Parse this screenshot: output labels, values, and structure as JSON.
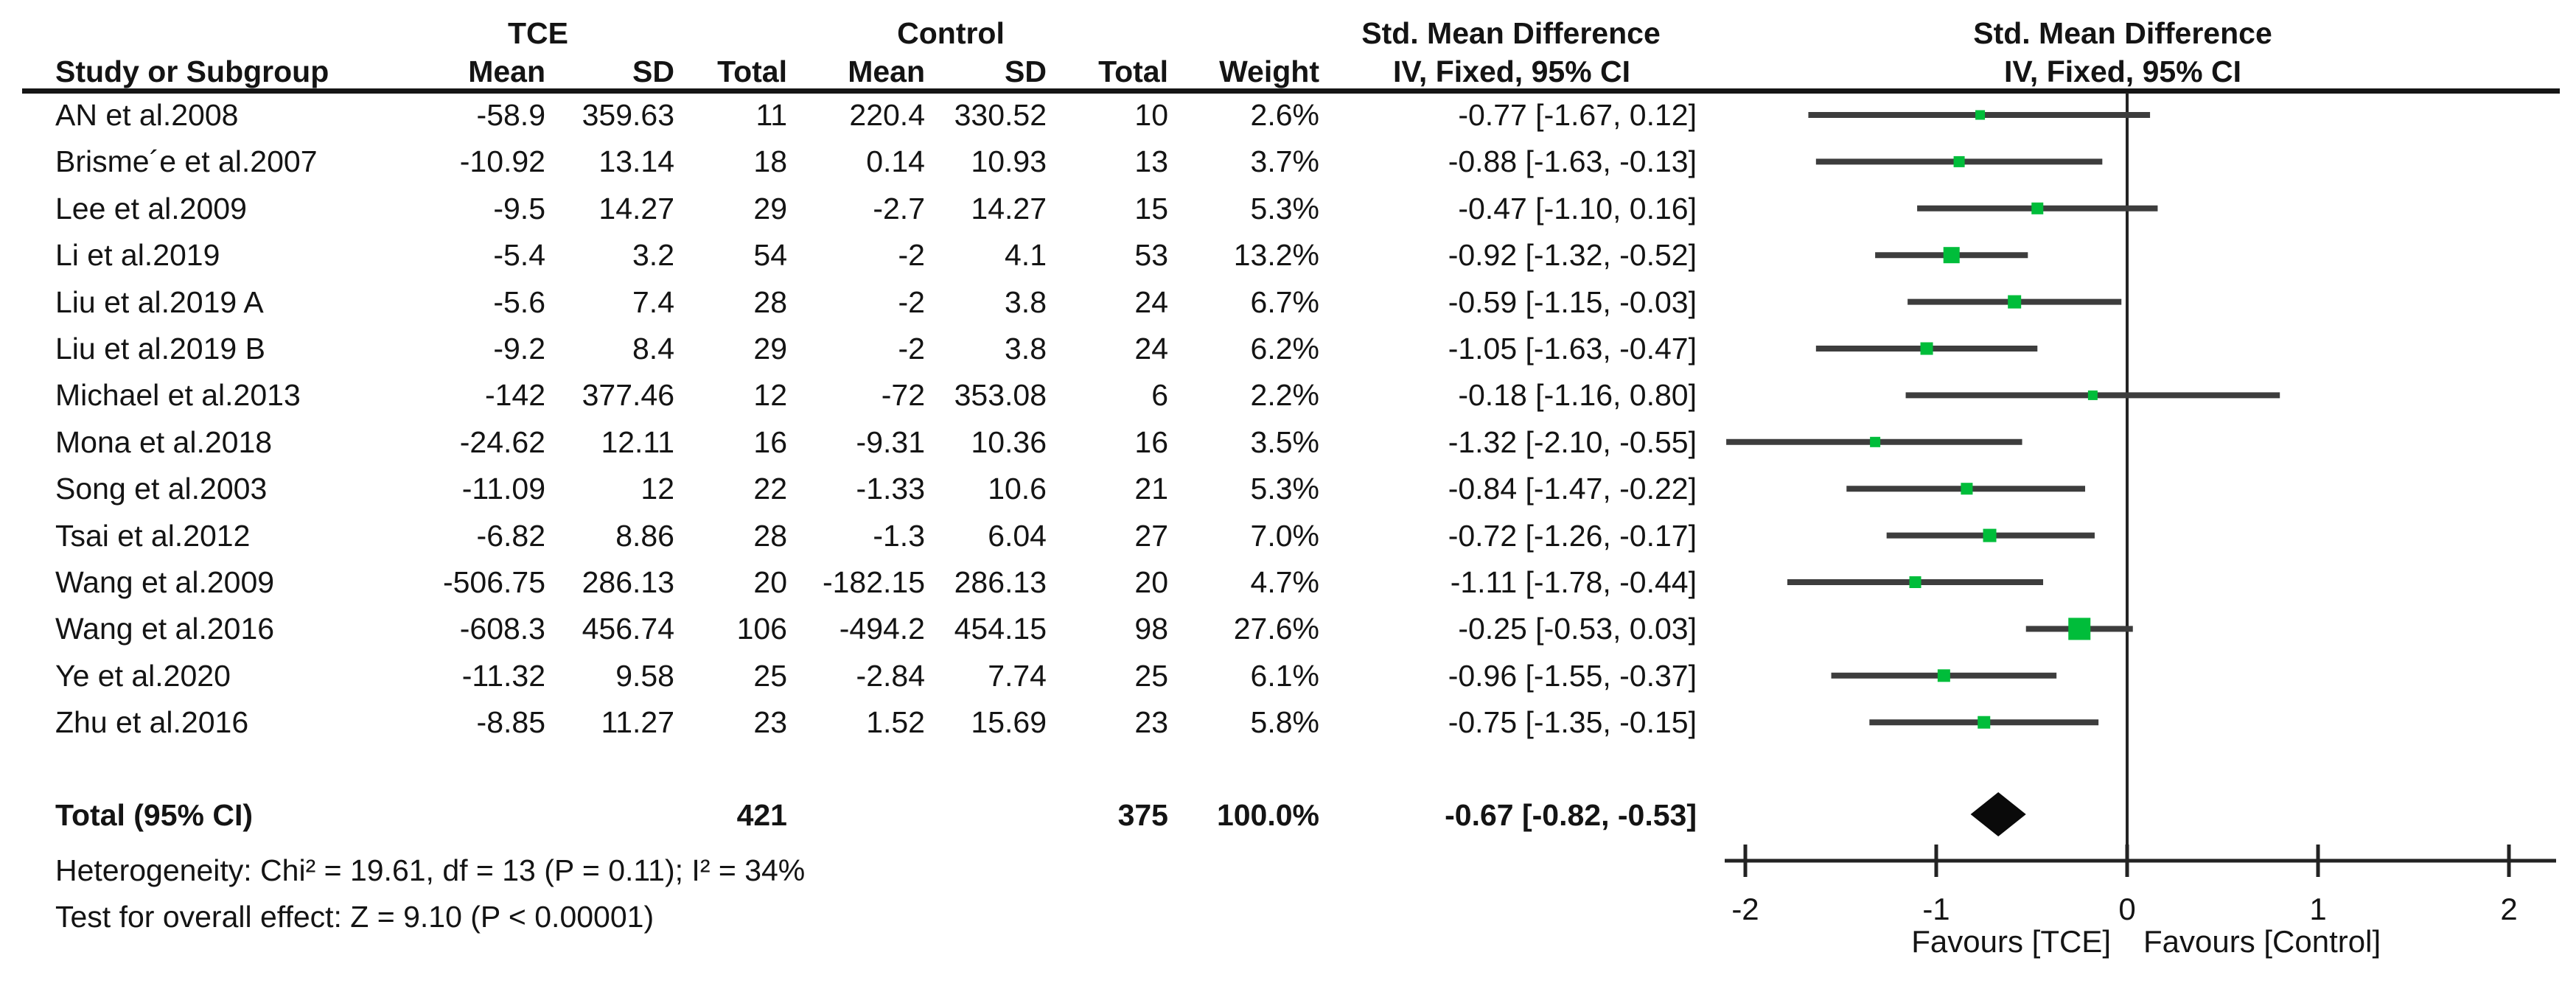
{
  "figure": {
    "background": "#ffffff",
    "text_color": "#141414",
    "marker_color": "#00bd3a",
    "ci_line_color": "#3d3d3d",
    "axis_color": "#232323",
    "diamond_color": "#0a0a0a"
  },
  "header": {
    "group_tce": "TCE",
    "group_control": "Control",
    "smd_text_col": "Std. Mean Difference",
    "smd_plot_col": "Std. Mean Difference",
    "study": "Study or Subgroup",
    "mean": "Mean",
    "sd": "SD",
    "total": "Total",
    "weight": "Weight",
    "method_ci_text_col": "IV, Fixed, 95% CI",
    "method_ci_plot_col": "IV, Fixed, 95% CI"
  },
  "chart_data": {
    "type": "forest",
    "effect_measure": "Std. Mean Difference",
    "method": "IV, Fixed, 95% CI",
    "studies": [
      {
        "name": "AN et al.2008",
        "tce_mean": "-58.9",
        "tce_sd": "359.63",
        "tce_total": "11",
        "ctl_mean": "220.4",
        "ctl_sd": "330.52",
        "ctl_total": "10",
        "weight": 2.6,
        "weight_pct": "2.6%",
        "ci_label": "-0.77 [-1.67, 0.12]",
        "est": -0.77,
        "lo": -1.67,
        "hi": 0.12
      },
      {
        "name": "Brisme´e et al.2007",
        "tce_mean": "-10.92",
        "tce_sd": "13.14",
        "tce_total": "18",
        "ctl_mean": "0.14",
        "ctl_sd": "10.93",
        "ctl_total": "13",
        "weight": 3.7,
        "weight_pct": "3.7%",
        "ci_label": "-0.88 [-1.63, -0.13]",
        "est": -0.88,
        "lo": -1.63,
        "hi": -0.13
      },
      {
        "name": "Lee et al.2009",
        "tce_mean": "-9.5",
        "tce_sd": "14.27",
        "tce_total": "29",
        "ctl_mean": "-2.7",
        "ctl_sd": "14.27",
        "ctl_total": "15",
        "weight": 5.3,
        "weight_pct": "5.3%",
        "ci_label": "-0.47 [-1.10, 0.16]",
        "est": -0.47,
        "lo": -1.1,
        "hi": 0.16
      },
      {
        "name": "Li et al.2019",
        "tce_mean": "-5.4",
        "tce_sd": "3.2",
        "tce_total": "54",
        "ctl_mean": "-2",
        "ctl_sd": "4.1",
        "ctl_total": "53",
        "weight": 13.2,
        "weight_pct": "13.2%",
        "ci_label": "-0.92 [-1.32, -0.52]",
        "est": -0.92,
        "lo": -1.32,
        "hi": -0.52
      },
      {
        "name": "Liu et al.2019 A",
        "tce_mean": "-5.6",
        "tce_sd": "7.4",
        "tce_total": "28",
        "ctl_mean": "-2",
        "ctl_sd": "3.8",
        "ctl_total": "24",
        "weight": 6.7,
        "weight_pct": "6.7%",
        "ci_label": "-0.59 [-1.15, -0.03]",
        "est": -0.59,
        "lo": -1.15,
        "hi": -0.03
      },
      {
        "name": "Liu et al.2019 B",
        "tce_mean": "-9.2",
        "tce_sd": "8.4",
        "tce_total": "29",
        "ctl_mean": "-2",
        "ctl_sd": "3.8",
        "ctl_total": "24",
        "weight": 6.2,
        "weight_pct": "6.2%",
        "ci_label": "-1.05 [-1.63, -0.47]",
        "est": -1.05,
        "lo": -1.63,
        "hi": -0.47
      },
      {
        "name": "Michael et al.2013",
        "tce_mean": "-142",
        "tce_sd": "377.46",
        "tce_total": "12",
        "ctl_mean": "-72",
        "ctl_sd": "353.08",
        "ctl_total": "6",
        "weight": 2.2,
        "weight_pct": "2.2%",
        "ci_label": "-0.18 [-1.16, 0.80]",
        "est": -0.18,
        "lo": -1.16,
        "hi": 0.8
      },
      {
        "name": "Mona et al.2018",
        "tce_mean": "-24.62",
        "tce_sd": "12.11",
        "tce_total": "16",
        "ctl_mean": "-9.31",
        "ctl_sd": "10.36",
        "ctl_total": "16",
        "weight": 3.5,
        "weight_pct": "3.5%",
        "ci_label": "-1.32 [-2.10, -0.55]",
        "est": -1.32,
        "lo": -2.1,
        "hi": -0.55
      },
      {
        "name": "Song et al.2003",
        "tce_mean": "-11.09",
        "tce_sd": "12",
        "tce_total": "22",
        "ctl_mean": "-1.33",
        "ctl_sd": "10.6",
        "ctl_total": "21",
        "weight": 5.3,
        "weight_pct": "5.3%",
        "ci_label": "-0.84 [-1.47, -0.22]",
        "est": -0.84,
        "lo": -1.47,
        "hi": -0.22
      },
      {
        "name": "Tsai et al.2012",
        "tce_mean": "-6.82",
        "tce_sd": "8.86",
        "tce_total": "28",
        "ctl_mean": "-1.3",
        "ctl_sd": "6.04",
        "ctl_total": "27",
        "weight": 7.0,
        "weight_pct": "7.0%",
        "ci_label": "-0.72 [-1.26, -0.17]",
        "est": -0.72,
        "lo": -1.26,
        "hi": -0.17
      },
      {
        "name": "Wang et al.2009",
        "tce_mean": "-506.75",
        "tce_sd": "286.13",
        "tce_total": "20",
        "ctl_mean": "-182.15",
        "ctl_sd": "286.13",
        "ctl_total": "20",
        "weight": 4.7,
        "weight_pct": "4.7%",
        "ci_label": "-1.11 [-1.78, -0.44]",
        "est": -1.11,
        "lo": -1.78,
        "hi": -0.44
      },
      {
        "name": "Wang et al.2016",
        "tce_mean": "-608.3",
        "tce_sd": "456.74",
        "tce_total": "106",
        "ctl_mean": "-494.2",
        "ctl_sd": "454.15",
        "ctl_total": "98",
        "weight": 27.6,
        "weight_pct": "27.6%",
        "ci_label": "-0.25 [-0.53, 0.03]",
        "est": -0.25,
        "lo": -0.53,
        "hi": 0.03
      },
      {
        "name": "Ye et al.2020",
        "tce_mean": "-11.32",
        "tce_sd": "9.58",
        "tce_total": "25",
        "ctl_mean": "-2.84",
        "ctl_sd": "7.74",
        "ctl_total": "25",
        "weight": 6.1,
        "weight_pct": "6.1%",
        "ci_label": "-0.96 [-1.55, -0.37]",
        "est": -0.96,
        "lo": -1.55,
        "hi": -0.37
      },
      {
        "name": "Zhu et al.2016",
        "tce_mean": "-8.85",
        "tce_sd": "11.27",
        "tce_total": "23",
        "ctl_mean": "1.52",
        "ctl_sd": "15.69",
        "ctl_total": "23",
        "weight": 5.8,
        "weight_pct": "5.8%",
        "ci_label": "-0.75 [-1.35, -0.15]",
        "est": -0.75,
        "lo": -1.35,
        "hi": -0.15
      }
    ],
    "total": {
      "label": "Total (95% CI)",
      "tce_total": "421",
      "ctl_total": "375",
      "weight_pct": "100.0%",
      "ci_label": "-0.67 [-0.82, -0.53]",
      "est": -0.67,
      "lo": -0.82,
      "hi": -0.53
    },
    "heterogeneity": "Heterogeneity: Chi² = 19.61, df = 13 (P = 0.11); I² = 34%",
    "overall_effect": "Test for overall effect: Z = 9.10 (P < 0.00001)",
    "axis": {
      "ticks": [
        -2,
        -1,
        0,
        1,
        2
      ],
      "xlim": [
        -2.12,
        2.24
      ],
      "favours_left": "Favours [TCE]",
      "favours_right": "Favours [Control]"
    }
  }
}
